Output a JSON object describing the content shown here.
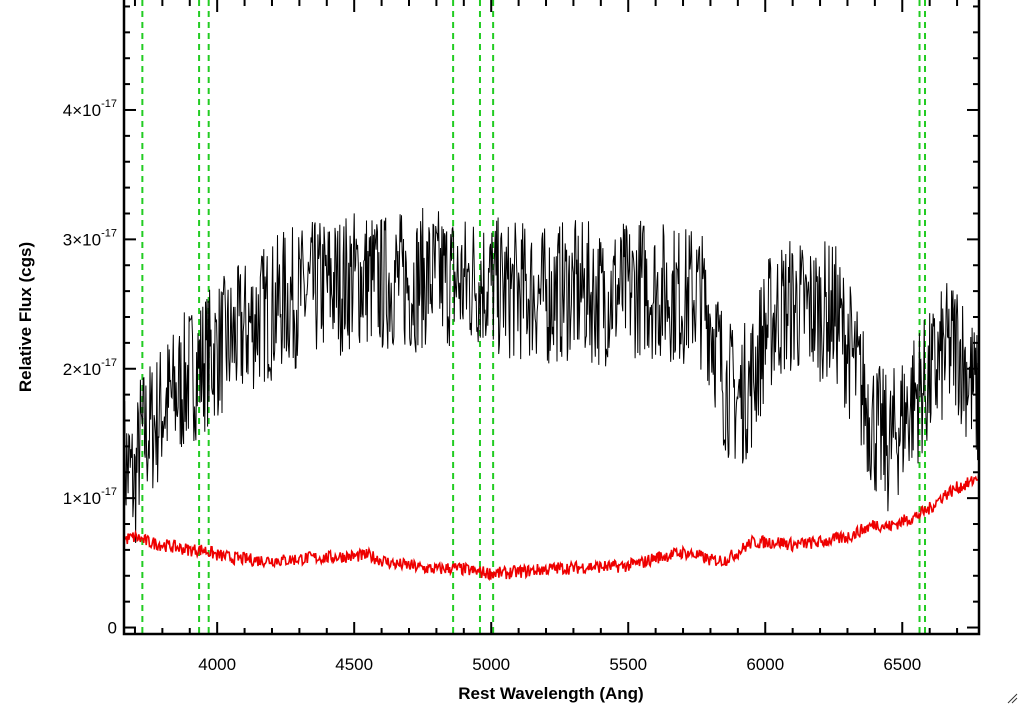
{
  "chart_data": {
    "type": "line",
    "xlabel": "Rest Wavelength (Ang)",
    "ylabel": "Relative Flux (cgs)",
    "xlim": [
      3660,
      6780
    ],
    "ylim": [
      -0.05,
      4.85
    ],
    "y_unit_multiplier": "1e-17",
    "x_ticks": [
      4000,
      4500,
      5000,
      5500,
      6000,
      6500
    ],
    "x_tick_labels": [
      "4000",
      "4500",
      "5000",
      "5500",
      "6000",
      "6500"
    ],
    "y_ticks": [
      0,
      1,
      2,
      3,
      4
    ],
    "y_tick_labels": [
      {
        "value": 0,
        "mantissa": "0",
        "exponent": ""
      },
      {
        "value": 1,
        "mantissa": "1×10",
        "exponent": "-17"
      },
      {
        "value": 2,
        "mantissa": "2×10",
        "exponent": "-17"
      },
      {
        "value": 3,
        "mantissa": "3×10",
        "exponent": "-17"
      },
      {
        "value": 4,
        "mantissa": "4×10",
        "exponent": "-17"
      }
    ],
    "grid": false,
    "colors": {
      "flux": "#000000",
      "error": "#ee0000",
      "lines": "#22cc22"
    },
    "emission_line_markers": [
      3727,
      3934,
      3969,
      4861,
      4959,
      5007,
      6563,
      6583
    ],
    "series": [
      {
        "role": "flux",
        "color": "#000000",
        "x": [
          3660,
          3680,
          3700,
          3720,
          3740,
          3760,
          3780,
          3800,
          3850,
          3900,
          3950,
          4000,
          4050,
          4100,
          4150,
          4200,
          4250,
          4300,
          4350,
          4400,
          4450,
          4500,
          4550,
          4600,
          4650,
          4700,
          4750,
          4800,
          4850,
          4900,
          4950,
          5000,
          5050,
          5100,
          5150,
          5200,
          5250,
          5300,
          5350,
          5400,
          5450,
          5500,
          5550,
          5600,
          5650,
          5700,
          5750,
          5800,
          5850,
          5900,
          5950,
          6000,
          6050,
          6100,
          6150,
          6200,
          6250,
          6300,
          6350,
          6400,
          6450,
          6500,
          6550,
          6600,
          6650,
          6700,
          6750,
          6780
        ],
        "y": [
          1.3,
          1.2,
          1.1,
          1.45,
          1.5,
          1.55,
          1.6,
          1.7,
          1.8,
          1.95,
          2.05,
          2.15,
          2.2,
          2.3,
          2.4,
          2.45,
          2.55,
          2.55,
          2.6,
          2.65,
          2.65,
          2.7,
          2.7,
          2.65,
          2.7,
          2.65,
          2.7,
          2.7,
          2.7,
          2.65,
          2.7,
          2.65,
          2.6,
          2.6,
          2.6,
          2.55,
          2.6,
          2.6,
          2.6,
          2.55,
          2.6,
          2.6,
          2.65,
          2.6,
          2.6,
          2.55,
          2.6,
          2.4,
          1.9,
          1.75,
          1.9,
          2.3,
          2.45,
          2.5,
          2.45,
          2.45,
          2.45,
          2.2,
          1.85,
          1.55,
          1.4,
          1.6,
          1.8,
          1.9,
          2.1,
          2.2,
          1.9,
          1.7
        ]
      },
      {
        "role": "error",
        "color": "#ee0000",
        "x": [
          3660,
          3700,
          3750,
          3800,
          3850,
          3900,
          3950,
          4000,
          4050,
          4100,
          4150,
          4200,
          4250,
          4300,
          4350,
          4400,
          4450,
          4500,
          4550,
          4600,
          4650,
          4700,
          4750,
          4800,
          4850,
          4900,
          4950,
          5000,
          5050,
          5100,
          5150,
          5200,
          5250,
          5300,
          5350,
          5400,
          5450,
          5500,
          5550,
          5600,
          5650,
          5700,
          5750,
          5800,
          5850,
          5900,
          5950,
          6000,
          6050,
          6100,
          6150,
          6200,
          6250,
          6300,
          6350,
          6400,
          6450,
          6500,
          6550,
          6600,
          6650,
          6700,
          6750,
          6780
        ],
        "y": [
          0.68,
          0.7,
          0.66,
          0.64,
          0.62,
          0.6,
          0.6,
          0.56,
          0.54,
          0.53,
          0.52,
          0.52,
          0.52,
          0.53,
          0.54,
          0.54,
          0.55,
          0.55,
          0.56,
          0.52,
          0.49,
          0.48,
          0.46,
          0.45,
          0.46,
          0.45,
          0.43,
          0.42,
          0.42,
          0.43,
          0.44,
          0.45,
          0.46,
          0.46,
          0.47,
          0.47,
          0.47,
          0.48,
          0.5,
          0.54,
          0.56,
          0.58,
          0.56,
          0.52,
          0.52,
          0.58,
          0.66,
          0.66,
          0.66,
          0.64,
          0.65,
          0.66,
          0.68,
          0.7,
          0.75,
          0.8,
          0.78,
          0.82,
          0.86,
          0.92,
          1.02,
          1.08,
          1.12,
          1.18
        ]
      }
    ]
  }
}
